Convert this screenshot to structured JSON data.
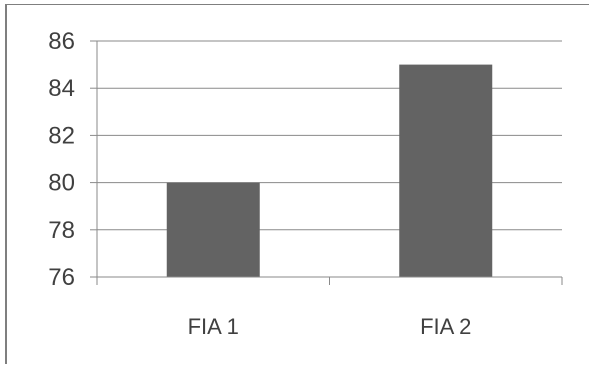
{
  "chart_data": {
    "type": "bar",
    "categories": [
      "FIA 1",
      "FIA 2"
    ],
    "values": [
      80,
      85
    ],
    "title": "",
    "xlabel": "",
    "ylabel": "",
    "ylim": [
      76,
      86
    ],
    "yticks": [
      "76",
      "78",
      "80",
      "82",
      "84",
      "86"
    ],
    "grid": true,
    "legend": "none",
    "bar_color": "#636363",
    "grid_color": "#8a8a8a"
  }
}
